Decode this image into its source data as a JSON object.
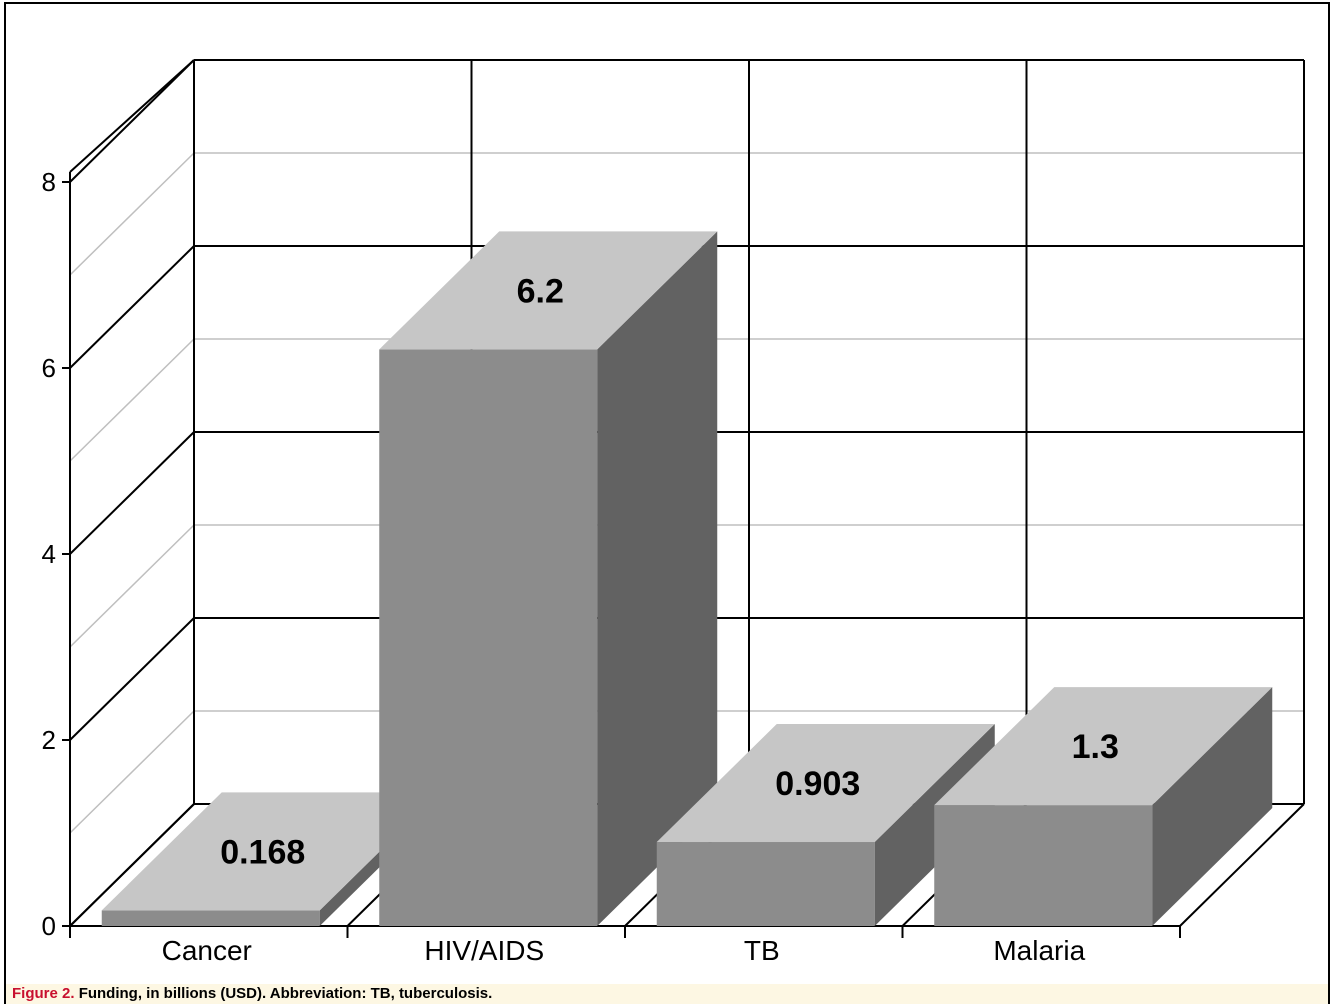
{
  "chart_data": {
    "type": "bar",
    "categories": [
      "Cancer",
      "HIV/AIDS",
      "TB",
      "Malaria"
    ],
    "values": [
      0.168,
      6.2,
      0.903,
      1.3
    ],
    "data_labels": [
      "0.168",
      "6.2",
      "0.903",
      "1.3"
    ],
    "yticks": [
      "0",
      "2",
      "4",
      "6",
      "8"
    ],
    "ylim": [
      0,
      8
    ],
    "grid": true,
    "style": "3d",
    "colors": {
      "front": "#8c8c8c",
      "top": "#c6c6c6",
      "side": "#626262"
    }
  },
  "caption": {
    "figure_number": "Figure 2.",
    "text": "Funding, in billions (USD). Abbreviation: TB, tuberculosis."
  }
}
